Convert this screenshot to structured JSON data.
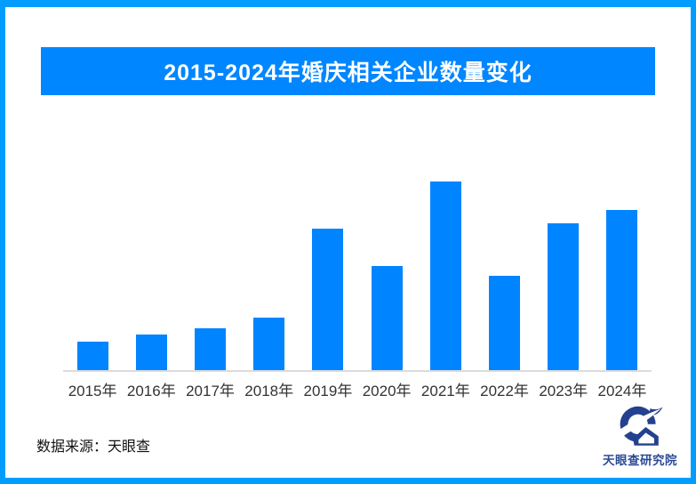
{
  "frame": {
    "border_color": "#009DFF"
  },
  "banner": {
    "title": "2015-2024年婚庆相关企业数量变化",
    "bg_color": "#0086FF",
    "text_color": "#FFFFFF"
  },
  "chart_data": {
    "type": "bar",
    "title": "2015-2024年婚庆相关企业数量变化",
    "categories": [
      "2015年",
      "2016年",
      "2017年",
      "2018年",
      "2019年",
      "2020年",
      "2021年",
      "2022年",
      "2023年",
      "2024年"
    ],
    "values": [
      15,
      19,
      22,
      28,
      75,
      55,
      100,
      50,
      78,
      85
    ],
    "value_unit": "relative index (max year 2021 = 100; no y-axis values shown in image)",
    "xlabel": "",
    "ylabel": "",
    "ylim": [
      0,
      100
    ],
    "grid": false,
    "legend": false,
    "bar_color": "#0084FF",
    "axis_line_color": "#DCDCDC",
    "tick_label_color": "#333333"
  },
  "footer": {
    "source_label": "数据来源：天眼查"
  },
  "brand": {
    "name": "天眼查研究院",
    "text_color": "#2A4A96",
    "icon_color": "#24418F",
    "icon": "tianyancha-logo-icon"
  }
}
